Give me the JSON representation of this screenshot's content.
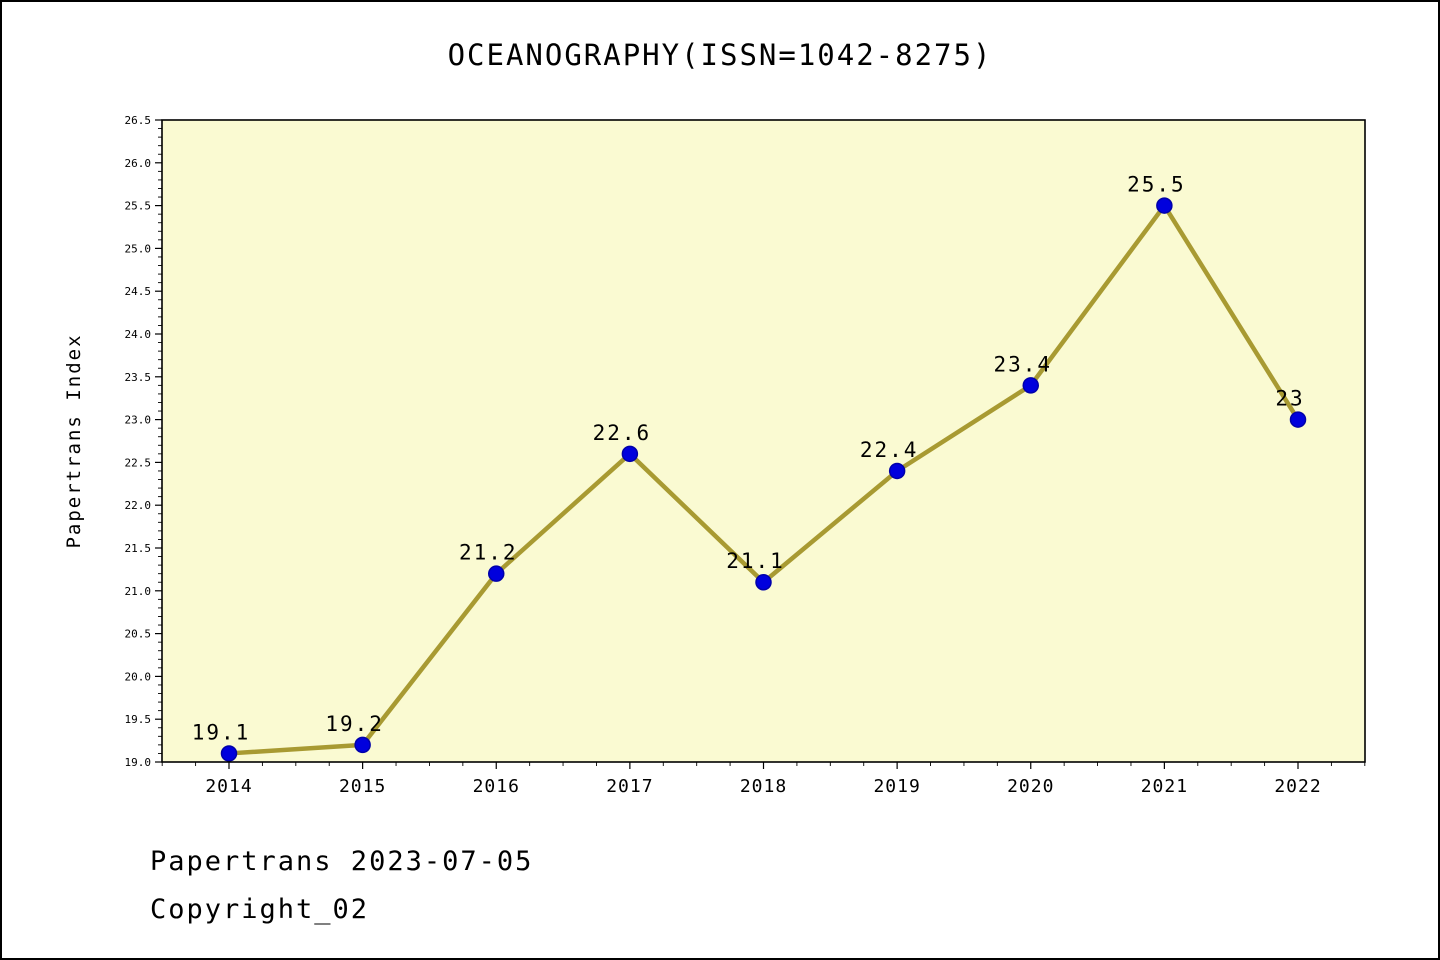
{
  "title": "OCEANOGRAPHY(ISSN=1042-8275)",
  "footer": {
    "line1": "Papertrans 2023-07-05",
    "line2": "Copyright_02"
  },
  "chart_data": {
    "type": "line",
    "title": "OCEANOGRAPHY(ISSN=1042-8275)",
    "xlabel": "",
    "ylabel": "Papertrans Index",
    "categories": [
      "2014",
      "2015",
      "2016",
      "2017",
      "2018",
      "2019",
      "2020",
      "2021",
      "2022"
    ],
    "series": [
      {
        "name": "Papertrans Index",
        "values": [
          19.1,
          19.2,
          21.2,
          22.6,
          21.1,
          22.4,
          23.4,
          25.5,
          23
        ]
      }
    ],
    "point_labels": [
      "19.1",
      "19.2",
      "21.2",
      "22.6",
      "21.1",
      "22.4",
      "23.4",
      "25.5",
      "23"
    ],
    "ylim": [
      19.0,
      26.5
    ],
    "ytick_step": 0.5,
    "ytick_minor_step": 0.1,
    "grid": false,
    "legend_position": "none",
    "colors": {
      "plot_background": "#FAFAD2",
      "line": "#A89A32",
      "marker_fill": "#0000DD",
      "marker_edge": "#0000AA",
      "axis": "#000000",
      "text": "#000000"
    }
  }
}
